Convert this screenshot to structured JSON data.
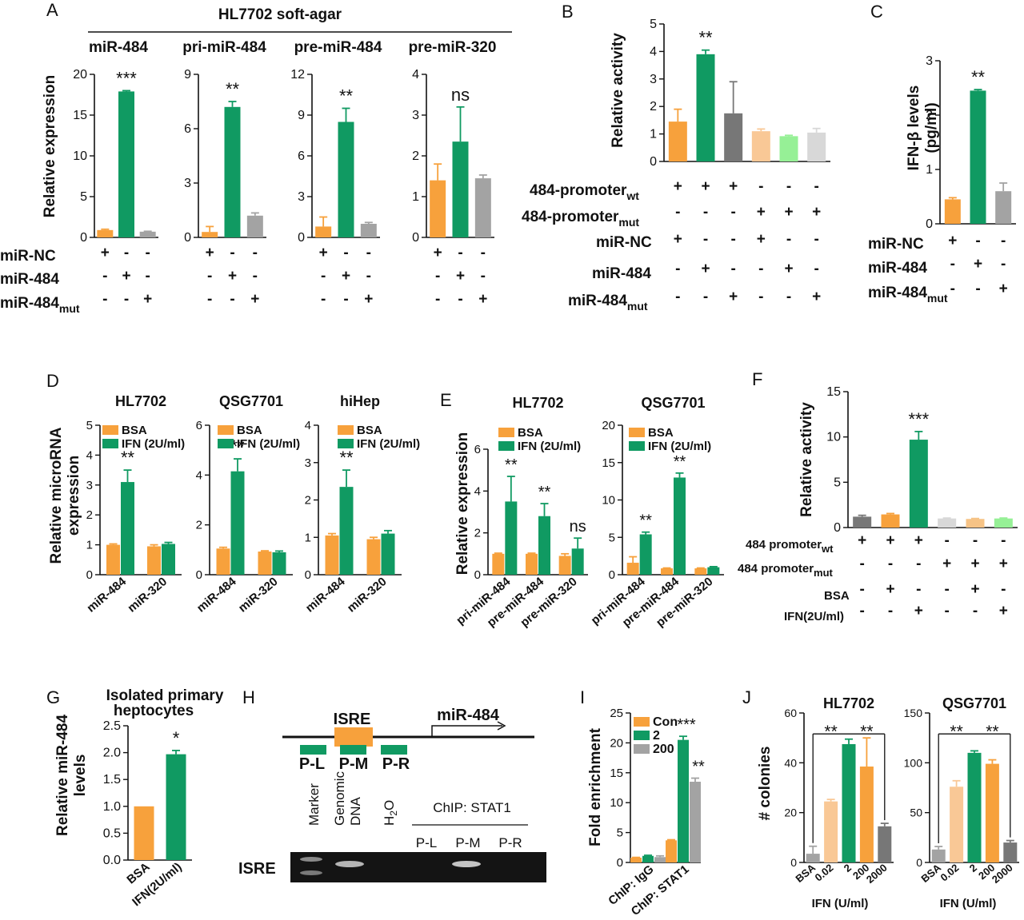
{
  "colors": {
    "orange": "#f7a13c",
    "green": "#109a62",
    "gray": "#a3a3a3",
    "darkgray": "#777777",
    "lightorange": "#f9c896",
    "lightgreen": "#96f096",
    "lightgray": "#d8d8d8",
    "peach": "#f6c386"
  },
  "texts": {
    "A": "A",
    "B": "B",
    "C": "C",
    "D": "D",
    "E": "E",
    "F": "F",
    "G": "G",
    "H": "H",
    "I": "I",
    "J": "J",
    "a_title": "HL7702 soft-agar",
    "rel_expr": "Relative expression",
    "rel_act": "Relative activity",
    "ifnb": "IFN-β levels",
    "pgml": "(pg/ml)",
    "rel_micro1": "Relative microRNA",
    "rel_micro2": "expression",
    "rel_mir484_1": "Relative miR-484",
    "rel_mir484_2": "levels",
    "g_title1": "Isolated primary",
    "g_title2": "heptocytes",
    "fold": "Fold enrichment",
    "colonies": "# colonies",
    "ifn_uml": "IFN (U/ml)",
    "row_mirnc": "miR-NC",
    "row_mir484": "miR-484",
    "row_mir484mut": "miR-484",
    "sub_mut": "mut",
    "row_p484wt": "484-promoter",
    "sub_wt": "wt",
    "row_p484mut": "484-promoter",
    "row_f_wt": "484 promoter",
    "row_f_mut": "484 promoter",
    "row_bsa": "BSA",
    "row_ifn2": "IFN(2U/ml)",
    "leg_bsa": "BSA",
    "leg_ifn": "IFN (2U/ml)",
    "leg_con": "Con",
    "leg_2": "2",
    "leg_200": "200",
    "isre": "ISRE",
    "mir484_gene": "miR-484",
    "pl": "P-L",
    "pm": "P-M",
    "pr": "P-R",
    "marker": "Marker",
    "genomic1": "Genomic",
    "genomic2": "DNA",
    "h2o": "H",
    "h2o_sub": "2",
    "h2o_o": "O",
    "chip_stat1": "ChIP: STAT1",
    "isre_gel": "ISRE",
    "plus": "+",
    "minus": "-"
  },
  "chart_data": [
    {
      "panel": "A",
      "type": "bar",
      "subtitle": "miR-484",
      "ylabel": "Relative expression",
      "ylim": [
        0,
        20
      ],
      "yticks": [
        0,
        5,
        10,
        15,
        20
      ],
      "categories": [
        "miR-NC",
        "miR-484",
        "miR-484mut"
      ],
      "values": [
        0.9,
        17.9,
        0.7
      ],
      "errors": [
        0.1,
        0.1,
        0.05
      ],
      "colors": [
        "orange",
        "green",
        "gray"
      ],
      "annotation": "***"
    },
    {
      "panel": "A",
      "type": "bar",
      "subtitle": "pri-miR-484",
      "ylim": [
        0,
        9
      ],
      "yticks": [
        0,
        3,
        6,
        9
      ],
      "categories": [
        "miR-NC",
        "miR-484",
        "miR-484mut"
      ],
      "values": [
        0.3,
        7.2,
        1.2
      ],
      "errors": [
        0.3,
        0.3,
        0.15
      ],
      "colors": [
        "orange",
        "green",
        "gray"
      ],
      "annotation": "**"
    },
    {
      "panel": "A",
      "type": "bar",
      "subtitle": "pre-miR-484",
      "ylim": [
        0,
        12
      ],
      "yticks": [
        0,
        3,
        6,
        9,
        12
      ],
      "categories": [
        "miR-NC",
        "miR-484",
        "miR-484mut"
      ],
      "values": [
        0.8,
        8.5,
        1.0
      ],
      "errors": [
        0.7,
        1.0,
        0.1
      ],
      "colors": [
        "orange",
        "green",
        "gray"
      ],
      "annotation": "**"
    },
    {
      "panel": "A",
      "type": "bar",
      "subtitle": "pre-miR-320",
      "ylim": [
        0,
        4
      ],
      "yticks": [
        0,
        1,
        2,
        3,
        4
      ],
      "categories": [
        "miR-NC",
        "miR-484",
        "miR-484mut"
      ],
      "values": [
        1.4,
        2.35,
        1.45
      ],
      "errors": [
        0.4,
        0.85,
        0.08
      ],
      "colors": [
        "orange",
        "green",
        "gray"
      ],
      "annotation": "ns"
    },
    {
      "panel": "B",
      "type": "bar",
      "ylabel": "Relative activity",
      "ylim": [
        0,
        5
      ],
      "yticks": [
        0,
        1,
        2,
        3,
        4,
        5
      ],
      "values": [
        1.45,
        3.9,
        1.75,
        1.1,
        0.92,
        1.05
      ],
      "errors": [
        0.45,
        0.15,
        1.15,
        0.08,
        0.03,
        0.15
      ],
      "colors": [
        "orange",
        "green",
        "darkgray",
        "lightorange",
        "lightgreen",
        "lightgray"
      ],
      "annotation": "**"
    },
    {
      "panel": "C",
      "type": "bar",
      "ylabel": "IFN-β levels (pg/ml)",
      "ylim": [
        0,
        3
      ],
      "yticks": [
        0,
        1,
        2,
        3
      ],
      "values": [
        0.45,
        2.45,
        0.6
      ],
      "errors": [
        0.03,
        0.02,
        0.15
      ],
      "colors": [
        "orange",
        "green",
        "gray"
      ],
      "annotation": "**"
    },
    {
      "panel": "D",
      "type": "bar",
      "subtitle": "HL7702",
      "ylabel": "Relative microRNA expression",
      "ylim": [
        0,
        5
      ],
      "yticks": [
        0,
        1,
        2,
        3,
        4,
        5
      ],
      "categories": [
        "miR-484",
        "miR-320"
      ],
      "series": [
        {
          "name": "BSA",
          "values": [
            1.0,
            0.95
          ],
          "errors": [
            0.03,
            0.05
          ]
        },
        {
          "name": "IFN (2U/ml)",
          "values": [
            3.1,
            1.03
          ],
          "errors": [
            0.4,
            0.05
          ]
        }
      ],
      "annotation": "**"
    },
    {
      "panel": "D",
      "type": "bar",
      "subtitle": "QSG7701",
      "ylim": [
        0,
        6
      ],
      "yticks": [
        0,
        2,
        4,
        6
      ],
      "categories": [
        "miR-484",
        "miR-320"
      ],
      "series": [
        {
          "name": "BSA",
          "values": [
            1.05,
            0.93
          ],
          "errors": [
            0.05,
            0.03
          ]
        },
        {
          "name": "IFN (2U/ml)",
          "values": [
            4.15,
            0.9
          ],
          "errors": [
            0.5,
            0.05
          ]
        }
      ],
      "annotation": "**"
    },
    {
      "panel": "D",
      "type": "bar",
      "subtitle": "hiHep",
      "ylim": [
        0,
        4
      ],
      "yticks": [
        0,
        1,
        2,
        3,
        4
      ],
      "categories": [
        "miR-484",
        "miR-320"
      ],
      "series": [
        {
          "name": "BSA",
          "values": [
            1.05,
            0.95
          ],
          "errors": [
            0.05,
            0.05
          ]
        },
        {
          "name": "IFN (2U/ml)",
          "values": [
            2.35,
            1.1
          ],
          "errors": [
            0.45,
            0.08
          ]
        }
      ],
      "annotation": "**"
    },
    {
      "panel": "E",
      "type": "bar",
      "subtitle": "HL7702",
      "ylabel": "Relative expression",
      "ylim": [
        0,
        6
      ],
      "yticks": [
        0,
        2,
        4,
        6
      ],
      "categories": [
        "pri-miR-484",
        "pre-miR-484",
        "pre-miR-320"
      ],
      "series": [
        {
          "name": "BSA",
          "values": [
            1.0,
            1.0,
            0.9
          ],
          "errors": [
            0.03,
            0.03,
            0.1
          ]
        },
        {
          "name": "IFN (2U/ml)",
          "values": [
            3.5,
            2.8,
            1.25
          ],
          "errors": [
            1.2,
            0.6,
            0.5
          ]
        }
      ],
      "annotations": [
        "**",
        "**",
        "ns"
      ]
    },
    {
      "panel": "E",
      "type": "bar",
      "subtitle": "QSG7701",
      "ylim": [
        0,
        20
      ],
      "yticks": [
        0,
        5,
        10,
        15,
        20
      ],
      "categories": [
        "pri-miR-484",
        "pre-miR-484",
        "pre-miR-320"
      ],
      "series": [
        {
          "name": "BSA",
          "values": [
            1.6,
            0.85,
            0.85
          ],
          "errors": [
            0.8,
            0.05,
            0.05
          ]
        },
        {
          "name": "IFN (2U/ml)",
          "values": [
            5.4,
            13.0,
            1.0
          ],
          "errors": [
            0.3,
            0.6,
            0.08
          ]
        }
      ],
      "annotations": [
        "**",
        "**",
        ""
      ]
    },
    {
      "panel": "F",
      "type": "bar",
      "ylabel": "Relative activity",
      "ylim": [
        0,
        15
      ],
      "yticks": [
        0,
        5,
        10,
        15
      ],
      "values": [
        1.2,
        1.45,
        9.7,
        1.0,
        0.95,
        1.0
      ],
      "errors": [
        0.15,
        0.1,
        0.9,
        0.05,
        0.05,
        0.05
      ],
      "colors": [
        "darkgray",
        "orange",
        "green",
        "lightgray",
        "peach",
        "lightgreen"
      ],
      "annotation": "***"
    },
    {
      "panel": "G",
      "type": "bar",
      "ylabel": "Relative miR-484 levels",
      "ylim": [
        0,
        2.5
      ],
      "yticks": [
        "0.0",
        "0.5",
        "1.0",
        "1.5",
        "2.0",
        "2.5"
      ],
      "categories": [
        "BSA",
        "IFN(2U/ml)"
      ],
      "values": [
        1.0,
        1.97
      ],
      "errors": [
        0,
        0.07
      ],
      "colors": [
        "orange",
        "green"
      ],
      "annotation": "*"
    },
    {
      "panel": "I",
      "type": "bar",
      "ylabel": "Fold enrichment",
      "ylim": [
        0,
        25
      ],
      "yticks": [
        0,
        5,
        10,
        15,
        20,
        25
      ],
      "categories": [
        "ChIP: IgG",
        "ChIP: STAT1"
      ],
      "series": [
        {
          "name": "Con",
          "values": [
            0.8,
            3.7
          ],
          "errors": [
            0.05,
            0.1
          ]
        },
        {
          "name": "2",
          "values": [
            1.1,
            20.5
          ],
          "errors": [
            0.1,
            0.6
          ]
        },
        {
          "name": "200",
          "values": [
            0.9,
            13.5
          ],
          "errors": [
            0.2,
            0.6
          ]
        }
      ],
      "annotations": [
        "***",
        "**"
      ]
    },
    {
      "panel": "J",
      "type": "bar",
      "subtitle": "HL7702",
      "ylabel": "# colonies",
      "xlabel": "IFN (U/ml)",
      "ylim": [
        0,
        60
      ],
      "yticks": [
        0,
        20,
        40,
        60
      ],
      "categories": [
        "BSA",
        "0.02",
        "2",
        "200",
        "2000"
      ],
      "values": [
        3.5,
        24.5,
        47.5,
        38.5,
        14.5
      ],
      "errors": [
        3,
        0.8,
        2,
        11.5,
        1.2
      ],
      "colors": [
        "gray",
        "lightorange",
        "green",
        "orange",
        "darkgray"
      ],
      "annotations": [
        "**",
        "**"
      ]
    },
    {
      "panel": "J",
      "type": "bar",
      "subtitle": "QSG7701",
      "xlabel": "IFN (U/ml)",
      "ylim": [
        0,
        150
      ],
      "yticks": [
        0,
        50,
        100,
        150
      ],
      "categories": [
        "BSA",
        "0.02",
        "2",
        "200",
        "2000"
      ],
      "values": [
        13,
        76,
        110,
        99,
        20
      ],
      "errors": [
        3,
        6,
        2,
        4,
        2
      ],
      "colors": [
        "gray",
        "lightorange",
        "green",
        "orange",
        "darkgray"
      ],
      "annotations": [
        "**",
        "**"
      ]
    }
  ]
}
